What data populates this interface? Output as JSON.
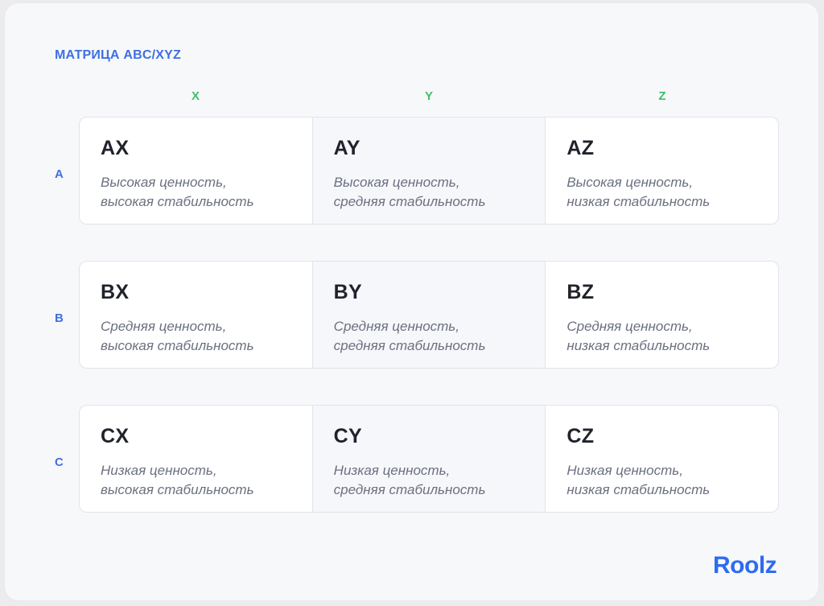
{
  "title": "МАТРИЦА ABC/XYZ",
  "columns": [
    "X",
    "Y",
    "Z"
  ],
  "rows": [
    {
      "label": "A",
      "cells": [
        {
          "code": "AX",
          "line1": "Высокая ценность,",
          "line2": "высокая стабильность"
        },
        {
          "code": "AY",
          "line1": "Высокая ценность,",
          "line2": "средняя стабильность"
        },
        {
          "code": "AZ",
          "line1": "Высокая ценность,",
          "line2": "низкая стабильность"
        }
      ]
    },
    {
      "label": "B",
      "cells": [
        {
          "code": "BX",
          "line1": "Средняя ценность,",
          "line2": "высокая стабильность"
        },
        {
          "code": "BY",
          "line1": "Средняя ценность,",
          "line2": "средняя стабильность"
        },
        {
          "code": "BZ",
          "line1": "Средняя ценность,",
          "line2": "низкая стабильность"
        }
      ]
    },
    {
      "label": "C",
      "cells": [
        {
          "code": "CX",
          "line1": "Низкая ценность,",
          "line2": "высокая стабильность"
        },
        {
          "code": "CY",
          "line1": "Низкая ценность,",
          "line2": "средняя стабильность"
        },
        {
          "code": "CZ",
          "line1": "Низкая ценность,",
          "line2": "низкая стабильность"
        }
      ]
    }
  ],
  "logo": "Roolz",
  "colors": {
    "title": "#3f6fe6",
    "column_labels": "#3cc165",
    "row_labels": "#3f6fe6",
    "logo": "#2d6bf1"
  }
}
